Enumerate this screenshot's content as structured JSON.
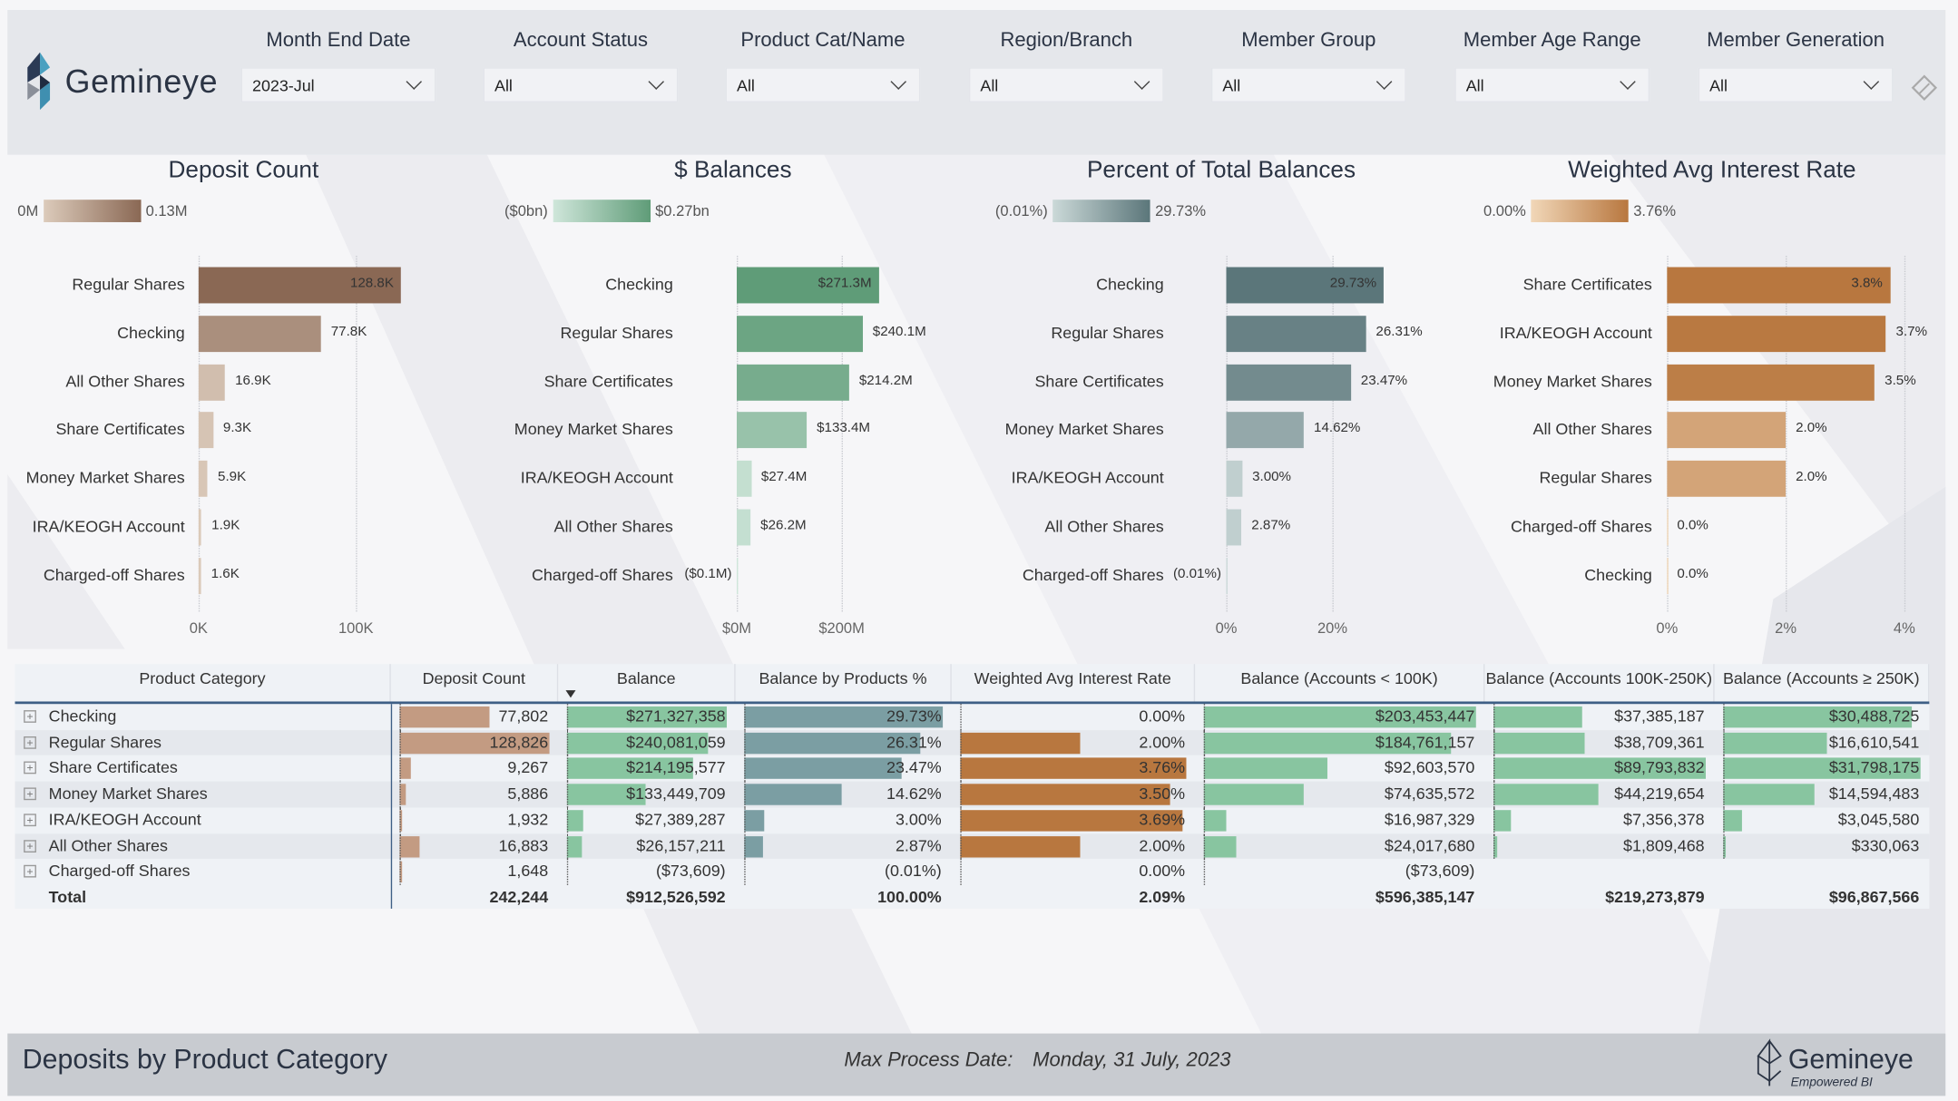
{
  "brand": {
    "name": "Gemineye",
    "tagline": "Empowered BI"
  },
  "filters": [
    {
      "label": "Month End Date",
      "value": "2023-Jul"
    },
    {
      "label": "Account Status",
      "value": "All"
    },
    {
      "label": "Product Cat/Name",
      "value": "All"
    },
    {
      "label": "Region/Branch",
      "value": "All"
    },
    {
      "label": "Member Group",
      "value": "All"
    },
    {
      "label": "Member Age Range",
      "value": "All"
    },
    {
      "label": "Member Generation",
      "value": "All"
    }
  ],
  "chart_data": [
    {
      "type": "bar",
      "orientation": "horizontal",
      "title": "Deposit Count",
      "legend_min": "0M",
      "legend_max": "0.13M",
      "colors": [
        "#dccbbb",
        "#8a6854"
      ],
      "categories": [
        "Regular Shares",
        "Checking",
        "All Other Shares",
        "Share Certificates",
        "Money Market Shares",
        "IRA/KEOGH Account",
        "Charged-off Shares"
      ],
      "values": [
        128826,
        77802,
        16883,
        9267,
        5886,
        1932,
        1648
      ],
      "labels": [
        "128.8K",
        "77.8K",
        "16.9K",
        "9.3K",
        "5.9K",
        "1.9K",
        "1.6K"
      ],
      "xticks": [
        {
          "v": 0,
          "t": "0K"
        },
        {
          "v": 100000,
          "t": "100K"
        }
      ],
      "xlim": [
        0,
        128826
      ]
    },
    {
      "type": "bar",
      "orientation": "horizontal",
      "title": "$ Balances",
      "legend_min": "($0bn)",
      "legend_max": "$0.27bn",
      "colors": [
        "#cfe6da",
        "#5f9c78"
      ],
      "categories": [
        "Checking",
        "Regular Shares",
        "Share Certificates",
        "Money Market Shares",
        "IRA/KEOGH Account",
        "All Other Shares",
        "Charged-off Shares"
      ],
      "values": [
        271.3,
        240.1,
        214.2,
        133.4,
        27.4,
        26.2,
        -0.1
      ],
      "labels": [
        "$271.3M",
        "$240.1M",
        "$214.2M",
        "$133.4M",
        "$27.4M",
        "$26.2M",
        "($0.1M)"
      ],
      "xticks": [
        {
          "v": 0,
          "t": "$0M"
        },
        {
          "v": 200,
          "t": "$200M"
        }
      ],
      "xlim": [
        0,
        271.3
      ]
    },
    {
      "type": "bar",
      "orientation": "horizontal",
      "title": "Percent of Total Balances",
      "legend_min": "(0.01%)",
      "legend_max": "29.73%",
      "colors": [
        "#cbd9d8",
        "#5b767a"
      ],
      "categories": [
        "Checking",
        "Regular Shares",
        "Share Certificates",
        "Money Market Shares",
        "IRA/KEOGH Account",
        "All Other Shares",
        "Charged-off Shares"
      ],
      "values": [
        29.73,
        26.31,
        23.47,
        14.62,
        3.0,
        2.87,
        -0.01
      ],
      "labels": [
        "29.73%",
        "26.31%",
        "23.47%",
        "14.62%",
        "3.00%",
        "2.87%",
        "(0.01%)"
      ],
      "xticks": [
        {
          "v": 0,
          "t": "0%"
        },
        {
          "v": 20,
          "t": "20%"
        }
      ],
      "xlim": [
        0,
        29.73
      ]
    },
    {
      "type": "bar",
      "orientation": "horizontal",
      "title": "Weighted Avg Interest Rate",
      "legend_min": "0.00%",
      "legend_max": "3.76%",
      "colors": [
        "#f1d7b8",
        "#b8773f"
      ],
      "categories": [
        "Share Certificates",
        "IRA/KEOGH Account",
        "Money Market Shares",
        "All Other Shares",
        "Regular Shares",
        "Charged-off Shares",
        "Checking"
      ],
      "values": [
        3.76,
        3.69,
        3.5,
        2.0,
        2.0,
        0.0,
        0.0
      ],
      "labels": [
        "3.8%",
        "3.7%",
        "3.5%",
        "2.0%",
        "2.0%",
        "0.0%",
        "0.0%"
      ],
      "xticks": [
        {
          "v": 0,
          "t": "0%"
        },
        {
          "v": 2,
          "t": "2%"
        },
        {
          "v": 4,
          "t": "4%"
        }
      ],
      "xlim": [
        0,
        3.76
      ]
    }
  ],
  "table": {
    "columns": [
      "Product Category",
      "Deposit Count",
      "Balance",
      "Balance by Products %",
      "Weighted Avg Interest Rate",
      "Balance (Accounts < 100K)",
      "Balance (Accounts 100K-250K)",
      "Balance (Accounts ≥ 250K)"
    ],
    "sorted_column": "Balance",
    "bar_colors": [
      "",
      "#c39b82",
      "#88c5a0",
      "#7b9ea3",
      "#b8773f",
      "#88c5a0",
      "#88c5a0",
      "#88c5a0"
    ],
    "rows": [
      {
        "cells": [
          "Checking",
          "77,802",
          "$271,327,358",
          "29.73%",
          "0.00%",
          "$203,453,447",
          "$37,385,187",
          "$30,488,725"
        ],
        "nums": [
          null,
          77802,
          271327358,
          29.73,
          0,
          203453447,
          37385187,
          30488725
        ]
      },
      {
        "cells": [
          "Regular Shares",
          "128,826",
          "$240,081,059",
          "26.31%",
          "2.00%",
          "$184,761,157",
          "$38,709,361",
          "$16,610,541"
        ],
        "nums": [
          null,
          128826,
          240081059,
          26.31,
          2.0,
          184761157,
          38709361,
          16610541
        ]
      },
      {
        "cells": [
          "Share Certificates",
          "9,267",
          "$214,195,577",
          "23.47%",
          "3.76%",
          "$92,603,570",
          "$89,793,832",
          "$31,798,175"
        ],
        "nums": [
          null,
          9267,
          214195577,
          23.47,
          3.76,
          92603570,
          89793832,
          31798175
        ]
      },
      {
        "cells": [
          "Money Market Shares",
          "5,886",
          "$133,449,709",
          "14.62%",
          "3.50%",
          "$74,635,572",
          "$44,219,654",
          "$14,594,483"
        ],
        "nums": [
          null,
          5886,
          133449709,
          14.62,
          3.5,
          74635572,
          44219654,
          14594483
        ]
      },
      {
        "cells": [
          "IRA/KEOGH Account",
          "1,932",
          "$27,389,287",
          "3.00%",
          "3.69%",
          "$16,987,329",
          "$7,356,378",
          "$3,045,580"
        ],
        "nums": [
          null,
          1932,
          27389287,
          3.0,
          3.69,
          16987329,
          7356378,
          3045580
        ]
      },
      {
        "cells": [
          "All Other Shares",
          "16,883",
          "$26,157,211",
          "2.87%",
          "2.00%",
          "$24,017,680",
          "$1,809,468",
          "$330,063"
        ],
        "nums": [
          null,
          16883,
          26157211,
          2.87,
          2.0,
          24017680,
          1809468,
          330063
        ]
      },
      {
        "cells": [
          "Charged-off Shares",
          "1,648",
          "($73,609)",
          "(0.01%)",
          "0.00%",
          "($73,609)",
          "",
          ""
        ],
        "nums": [
          null,
          1648,
          -73609,
          -0.01,
          0,
          -73609,
          null,
          null
        ]
      }
    ],
    "total": [
      "Total",
      "242,244",
      "$912,526,592",
      "100.00%",
      "2.09%",
      "$596,385,147",
      "$219,273,879",
      "$96,867,566"
    ]
  },
  "footer": {
    "title": "Deposits by Product Category",
    "max_process_label": "Max Process Date:",
    "max_process_date": "Monday, 31 July, 2023"
  }
}
